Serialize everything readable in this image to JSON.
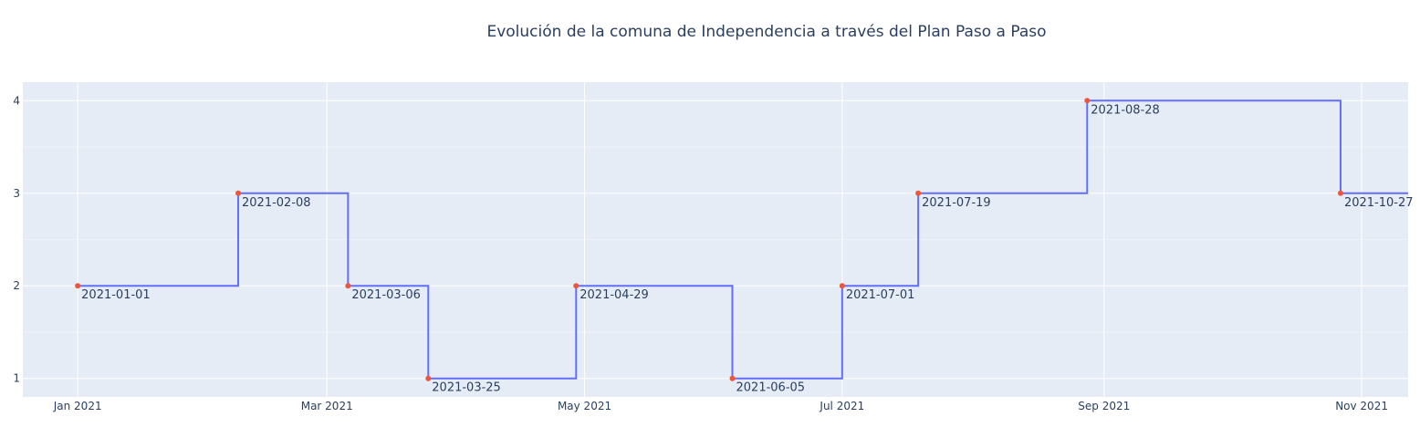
{
  "chart_data": {
    "type": "line",
    "title": "Evolución de la comuna de Independencia a través del Plan Paso a Paso",
    "xlabel": "",
    "ylabel": "",
    "line_shape": "step-after",
    "x_range": [
      "2020-12-19",
      "2021-11-12"
    ],
    "ylim": [
      0.8,
      4.2
    ],
    "x_ticks": [
      {
        "date": "2021-01-01",
        "label": "Jan 2021"
      },
      {
        "date": "2021-03-01",
        "label": "Mar 2021"
      },
      {
        "date": "2021-05-01",
        "label": "May 2021"
      },
      {
        "date": "2021-07-01",
        "label": "Jul 2021"
      },
      {
        "date": "2021-09-01",
        "label": "Sep 2021"
      },
      {
        "date": "2021-11-01",
        "label": "Nov 2021"
      }
    ],
    "y_ticks": [
      1,
      2,
      3,
      4
    ],
    "grid": true,
    "series": [
      {
        "x": [
          "2021-01-01",
          "2021-02-08",
          "2021-03-06",
          "2021-03-25",
          "2021-04-29",
          "2021-06-05",
          "2021-07-01",
          "2021-07-19",
          "2021-08-28",
          "2021-10-27"
        ],
        "y": [
          2,
          3,
          2,
          1,
          2,
          1,
          2,
          3,
          4,
          3
        ],
        "point_labels": [
          "2021-01-01",
          "2021-02-08",
          "2021-03-06",
          "2021-03-25",
          "2021-04-29",
          "2021-06-05",
          "2021-07-01",
          "2021-07-19",
          "2021-08-28",
          "2021-10-27"
        ]
      }
    ],
    "colors": {
      "line": "#636efa",
      "marker": "#ef553b",
      "plot_bg": "#e5ecf6",
      "grid": "#ffffff",
      "text": "#2a3f5f"
    }
  }
}
